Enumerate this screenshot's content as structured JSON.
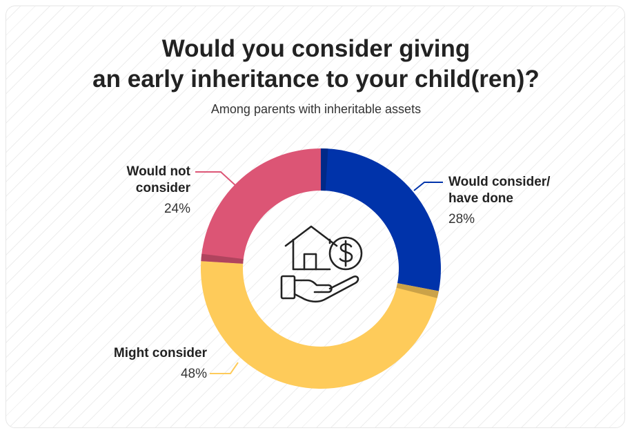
{
  "header": {
    "title_line1": "Would you consider giving",
    "title_line2": "an early inheritance to your child(ren)?",
    "subtitle": "Among parents with inheritable assets"
  },
  "chart_data": {
    "type": "pie",
    "variant": "donut",
    "title": "Would you consider giving an early inheritance to your child(ren)?",
    "subtitle": "Among parents with inheritable assets",
    "unit": "%",
    "slices": [
      {
        "label_line1": "Would consider/",
        "label_line2": "have done",
        "label": "Would consider/ have done",
        "value": 28,
        "value_label": "28%",
        "color": "#0033aa"
      },
      {
        "label_line1": "Might consider",
        "label_line2": "",
        "label": "Might consider",
        "value": 48,
        "value_label": "48%",
        "color": "#fecb5a"
      },
      {
        "label_line1": "Would not",
        "label_line2": "consider",
        "label": "Would not consider",
        "value": 24,
        "value_label": "24%",
        "color": "#dc5575"
      }
    ],
    "legend": "none (direct labels)"
  },
  "icons": {
    "center_icon": "house-money-hand-icon"
  },
  "colors": {
    "background_stripe": "#ededed",
    "title": "#222222"
  }
}
